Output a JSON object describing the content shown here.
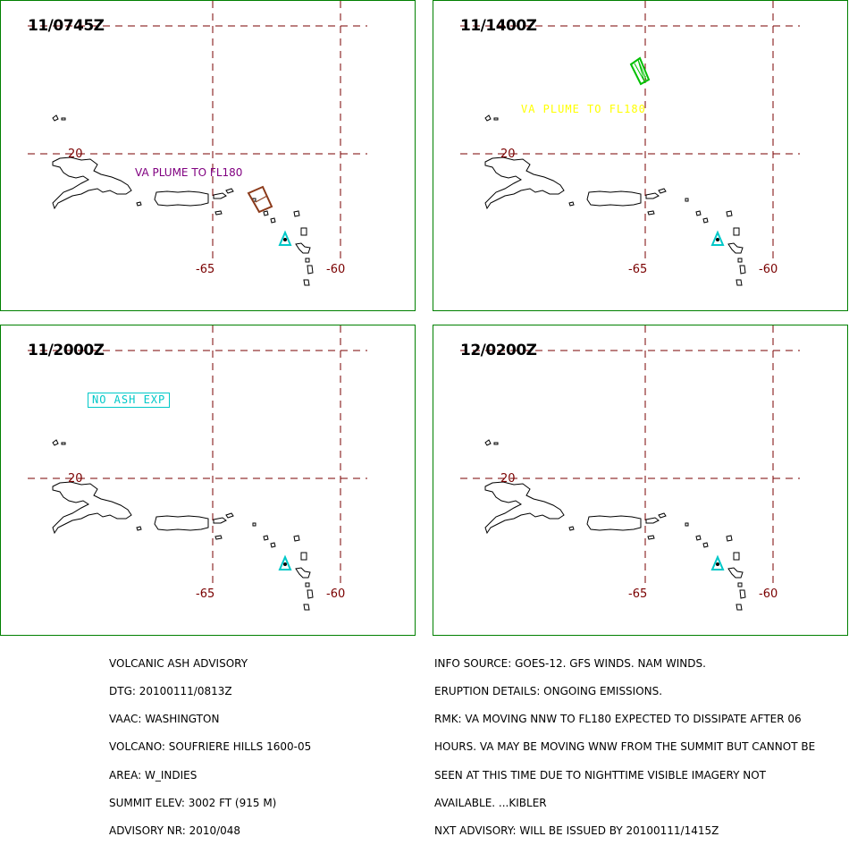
{
  "panels": [
    {
      "time": "11/0745Z",
      "lat_label": "20",
      "lon_labels": [
        "-65",
        "-60"
      ],
      "plume_text": "VA PLUME TO FL180",
      "plume_color": "#800080",
      "polygon_color": "#8b3a1a"
    },
    {
      "time": "11/1400Z",
      "lat_label": "20",
      "lon_labels": [
        "-65",
        "-60"
      ],
      "plume_text": "VA PLUME TO FL180",
      "plume_color": "#ffff00",
      "polygon_color": "#00c000"
    },
    {
      "time": "11/2000Z",
      "lat_label": "20",
      "lon_labels": [
        "-65",
        "-60"
      ],
      "plume_text": "NO ASH EXP",
      "plume_color": "#00c8c8"
    },
    {
      "time": "12/0200Z",
      "lat_label": "20",
      "lon_labels": [
        "-65",
        "-60"
      ],
      "plume_text": ""
    }
  ],
  "colors": {
    "frame": "#008000",
    "grid": "#7a0000",
    "volcano": "#00c8c8",
    "coast": "#000000"
  },
  "advisory_left": [
    "VOLCANIC ASH ADVISORY",
    "DTG: 20100111/0813Z",
    "VAAC: WASHINGTON",
    "VOLCANO: SOUFRIERE HILLS 1600-05",
    "AREA: W_INDIES",
    "SUMMIT ELEV: 3002 FT (915 M)",
    "ADVISORY NR: 2010/048"
  ],
  "advisory_right": [
    "INFO SOURCE: GOES-12. GFS WINDS. NAM WINDS.",
    "ERUPTION DETAILS: ONGOING EMISSIONS.",
    "RMK: VA MOVING NNW TO FL180 EXPECTED TO DISSIPATE AFTER 06",
    "HOURS. VA MAY BE MOVING WNW FROM THE SUMMIT BUT CANNOT BE",
    "SEEN AT THIS TIME DUE TO NIGHTTIME VISIBLE IMAGERY NOT",
    "AVAILABLE. ...KIBLER",
    "NXT ADVISORY: WILL BE ISSUED BY 20100111/1415Z"
  ]
}
